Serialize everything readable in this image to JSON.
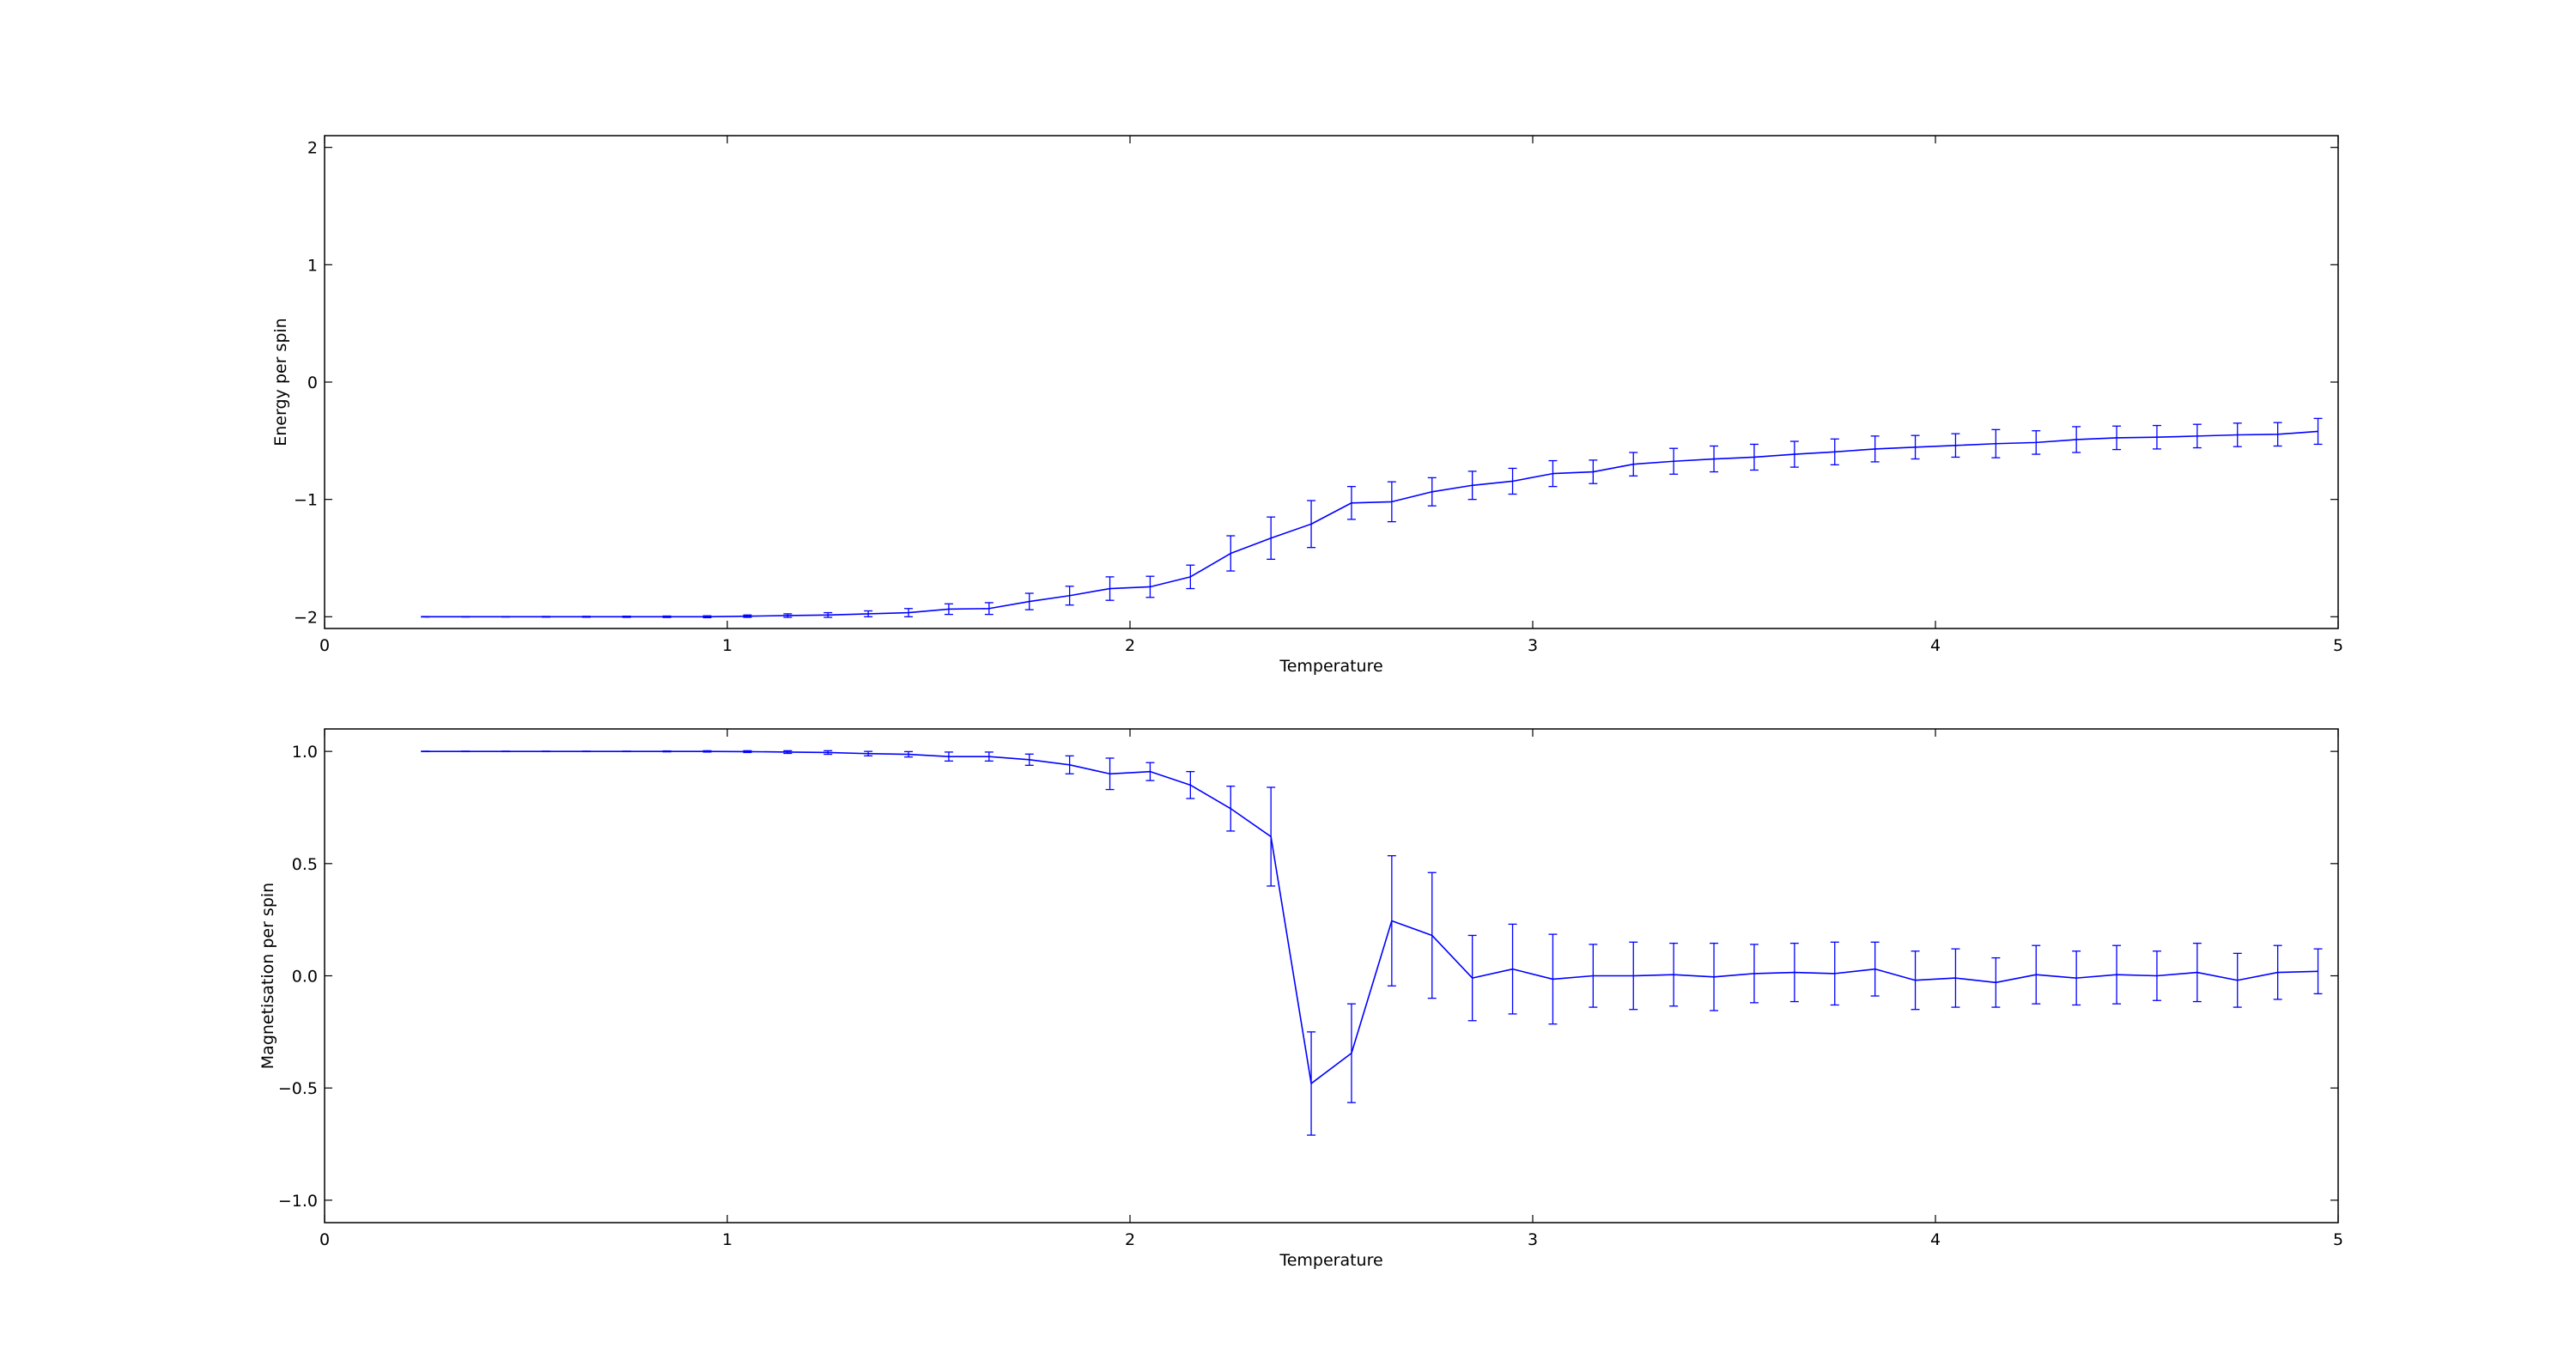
{
  "chart_data": [
    {
      "type": "line",
      "xlabel": "Temperature",
      "ylabel": "Energy per spin",
      "xlim": [
        0,
        5
      ],
      "ylim": [
        -2.1,
        2.1
      ],
      "xticks": [
        0,
        1,
        2,
        3,
        4,
        5
      ],
      "xtick_labels": [
        "0",
        "1",
        "2",
        "3",
        "4",
        "5"
      ],
      "yticks": [
        -2,
        -1,
        0,
        1,
        2
      ],
      "ytick_labels": [
        "−2",
        "−1",
        "0",
        "1",
        "2"
      ],
      "grid": false,
      "series": [
        {
          "color": "#0000ff",
          "x": [
            0.25,
            0.35,
            0.45,
            0.55,
            0.65,
            0.75,
            0.85,
            0.95,
            1.05,
            1.15,
            1.25,
            1.35,
            1.45,
            1.55,
            1.65,
            1.75,
            1.85,
            1.95,
            2.05,
            2.15,
            2.25,
            2.35,
            2.45,
            2.55,
            2.65,
            2.75,
            2.85,
            2.95,
            3.05,
            3.15,
            3.25,
            3.35,
            3.45,
            3.55,
            3.65,
            3.75,
            3.85,
            3.95,
            4.05,
            4.15,
            4.25,
            4.35,
            4.45,
            4.55,
            4.65,
            4.75,
            4.85,
            4.95
          ],
          "y": [
            -2.0,
            -2.0,
            -2.0,
            -2.0,
            -2.0,
            -2.0,
            -2.0,
            -2.0,
            -1.995,
            -1.99,
            -1.985,
            -1.975,
            -1.965,
            -1.935,
            -1.93,
            -1.87,
            -1.82,
            -1.76,
            -1.745,
            -1.66,
            -1.46,
            -1.33,
            -1.21,
            -1.03,
            -1.02,
            -0.935,
            -0.88,
            -0.845,
            -0.78,
            -0.765,
            -0.7,
            -0.675,
            -0.655,
            -0.64,
            -0.615,
            -0.595,
            -0.57,
            -0.555,
            -0.54,
            -0.525,
            -0.515,
            -0.49,
            -0.475,
            -0.47,
            -0.46,
            -0.45,
            -0.445,
            -0.42
          ],
          "yerr": [
            0.002,
            0.002,
            0.002,
            0.003,
            0.004,
            0.005,
            0.006,
            0.008,
            0.01,
            0.015,
            0.02,
            0.025,
            0.035,
            0.045,
            0.05,
            0.07,
            0.08,
            0.1,
            0.09,
            0.1,
            0.15,
            0.18,
            0.2,
            0.14,
            0.17,
            0.12,
            0.12,
            0.11,
            0.11,
            0.1,
            0.1,
            0.11,
            0.11,
            0.11,
            0.11,
            0.11,
            0.11,
            0.1,
            0.1,
            0.12,
            0.1,
            0.11,
            0.1,
            0.1,
            0.1,
            0.1,
            0.1,
            0.11
          ]
        }
      ]
    },
    {
      "type": "line",
      "xlabel": "Temperature",
      "ylabel": "Magnetisation per spin",
      "xlim": [
        0,
        5
      ],
      "ylim": [
        -1.1,
        1.1
      ],
      "xticks": [
        0,
        1,
        2,
        3,
        4,
        5
      ],
      "xtick_labels": [
        "0",
        "1",
        "2",
        "3",
        "4",
        "5"
      ],
      "yticks": [
        -1.0,
        -0.5,
        0.0,
        0.5,
        1.0
      ],
      "ytick_labels": [
        "−1.0",
        "−0.5",
        "0.0",
        "0.5",
        "1.0"
      ],
      "grid": false,
      "series": [
        {
          "color": "#0000ff",
          "x": [
            0.25,
            0.35,
            0.45,
            0.55,
            0.65,
            0.75,
            0.85,
            0.95,
            1.05,
            1.15,
            1.25,
            1.35,
            1.45,
            1.55,
            1.65,
            1.75,
            1.85,
            1.95,
            2.05,
            2.15,
            2.25,
            2.35,
            2.45,
            2.55,
            2.65,
            2.75,
            2.85,
            2.95,
            3.05,
            3.15,
            3.25,
            3.35,
            3.45,
            3.55,
            3.65,
            3.75,
            3.85,
            3.95,
            4.05,
            4.15,
            4.25,
            4.35,
            4.45,
            4.55,
            4.65,
            4.75,
            4.85,
            4.95
          ],
          "y": [
            1.0,
            1.0,
            1.0,
            1.0,
            1.0,
            1.0,
            1.0,
            1.0,
            0.999,
            0.997,
            0.995,
            0.99,
            0.987,
            0.977,
            0.977,
            0.963,
            0.94,
            0.9,
            0.91,
            0.85,
            0.745,
            0.62,
            -0.48,
            -0.345,
            0.245,
            0.18,
            -0.01,
            0.03,
            -0.015,
            0.0,
            0.0,
            0.005,
            -0.005,
            0.01,
            0.015,
            0.01,
            0.03,
            -0.02,
            -0.01,
            -0.03,
            0.005,
            -0.01,
            0.005,
            0.0,
            0.015,
            -0.02,
            0.015,
            0.02
          ],
          "yerr": [
            0.001,
            0.001,
            0.001,
            0.001,
            0.001,
            0.001,
            0.002,
            0.003,
            0.004,
            0.006,
            0.008,
            0.01,
            0.012,
            0.02,
            0.02,
            0.025,
            0.04,
            0.07,
            0.04,
            0.06,
            0.1,
            0.22,
            0.23,
            0.22,
            0.29,
            0.28,
            0.19,
            0.2,
            0.2,
            0.14,
            0.15,
            0.14,
            0.15,
            0.13,
            0.13,
            0.14,
            0.12,
            0.13,
            0.13,
            0.11,
            0.13,
            0.12,
            0.13,
            0.11,
            0.13,
            0.12,
            0.12,
            0.1
          ]
        }
      ]
    }
  ]
}
